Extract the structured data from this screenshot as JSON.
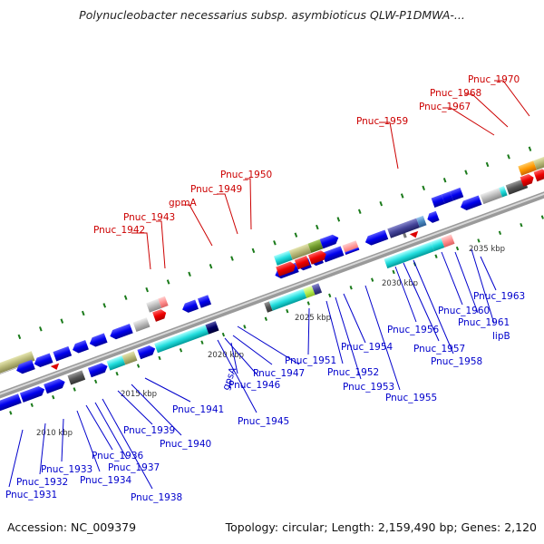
{
  "title": "Polynucleobacter necessarius subsp. asymbioticus QLW-P1DMWA-...",
  "footer": {
    "accession": "Accession: NC_009379",
    "summary": "Topology: circular; Length: 2,159,490 bp; Genes: 2,120"
  },
  "scale_labels": [
    "2010 kbp",
    "2015 kbp",
    "2020 kbp",
    "2025 kbp",
    "2030 kbp",
    "2035 kbp"
  ],
  "top_labels": [
    "Pnuc_1942",
    "Pnuc_1943",
    "gpmA",
    "Pnuc_1949",
    "Pnuc_1950",
    "Pnuc_1959",
    "Pnuc_1967",
    "Pnuc_1968",
    "Pnuc_1970"
  ],
  "bottom_labels": [
    "Pnuc_1931",
    "Pnuc_1932",
    "Pnuc_1933",
    "Pnuc_1934",
    "Pnuc_1936",
    "Pnuc_1937",
    "Pnuc_1938",
    "Pnuc_1939",
    "Pnuc_1940",
    "Pnuc_1941",
    "gpsA",
    "Pnuc_1945",
    "Pnuc_1946",
    "Pnuc_1947",
    "Pnuc_1951",
    "Pnuc_1952",
    "Pnuc_1953",
    "Pnuc_1954",
    "Pnuc_1955",
    "Pnuc_1956",
    "Pnuc_1957",
    "Pnuc_1958",
    "Pnuc_1960",
    "Pnuc_1961",
    "lipB",
    "Pnuc_1963"
  ],
  "colors": {
    "forward_gene": "#0000ee",
    "reverse_gene": "#ee0000",
    "backbone": "#8a8a8a",
    "tick": "#1a7a1a",
    "top_label": "#cc0000",
    "bottom_label": "#0000cc"
  }
}
